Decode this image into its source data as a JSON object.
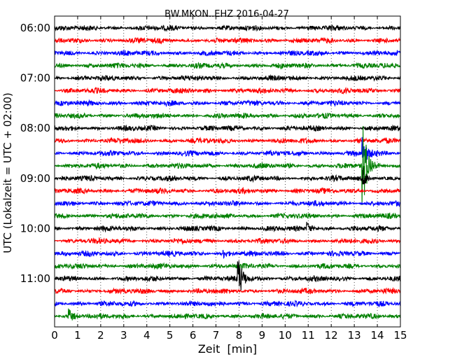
{
  "chart_data": {
    "type": "line",
    "title": "BW.MKON..EHZ 2016-04-27",
    "xlabel": "Zeit  [min]",
    "ylabel": "UTC (Lokalzeit = UTC + 02:00)",
    "xlim": [
      0,
      15
    ],
    "x_ticks": [
      "0",
      "1",
      "2",
      "3",
      "4",
      "5",
      "6",
      "7",
      "8",
      "9",
      "10",
      "11",
      "12",
      "13",
      "14",
      "15"
    ],
    "y_tick_labels": [
      "06:00",
      "07:00",
      "08:00",
      "09:00",
      "10:00",
      "11:00"
    ],
    "grid": true,
    "trace_colors": [
      "#000000",
      "#ff0000",
      "#0000ff",
      "#008000"
    ],
    "traces": [
      {
        "start": "06:00",
        "events": []
      },
      {
        "start": "06:15",
        "events": []
      },
      {
        "start": "06:30",
        "events": []
      },
      {
        "start": "06:45",
        "events": []
      },
      {
        "start": "07:00",
        "events": []
      },
      {
        "start": "07:15",
        "events": []
      },
      {
        "start": "07:30",
        "events": []
      },
      {
        "start": "07:45",
        "events": []
      },
      {
        "start": "08:00",
        "events": []
      },
      {
        "start": "08:15",
        "events": []
      },
      {
        "start": "08:30",
        "events": [
          {
            "t": 13.35,
            "amp": 1.4
          }
        ]
      },
      {
        "start": "08:45",
        "events": [
          {
            "t": 13.35,
            "amp": 4.5
          }
        ]
      },
      {
        "start": "09:00",
        "events": [
          {
            "t": 13.35,
            "amp": 0.9
          }
        ]
      },
      {
        "start": "09:15",
        "events": []
      },
      {
        "start": "09:30",
        "events": []
      },
      {
        "start": "09:45",
        "events": []
      },
      {
        "start": "10:00",
        "events": [
          {
            "t": 10.95,
            "amp": 0.55
          }
        ]
      },
      {
        "start": "10:15",
        "events": []
      },
      {
        "start": "10:30",
        "events": [
          {
            "t": 7.3,
            "amp": 0.35
          }
        ]
      },
      {
        "start": "10:45",
        "events": []
      },
      {
        "start": "11:00",
        "events": [
          {
            "t": 7.95,
            "amp": 2.0
          }
        ]
      },
      {
        "start": "11:15",
        "events": []
      },
      {
        "start": "11:30",
        "events": []
      },
      {
        "start": "11:45",
        "events": [
          {
            "t": 0.6,
            "amp": 0.6
          }
        ]
      }
    ]
  }
}
